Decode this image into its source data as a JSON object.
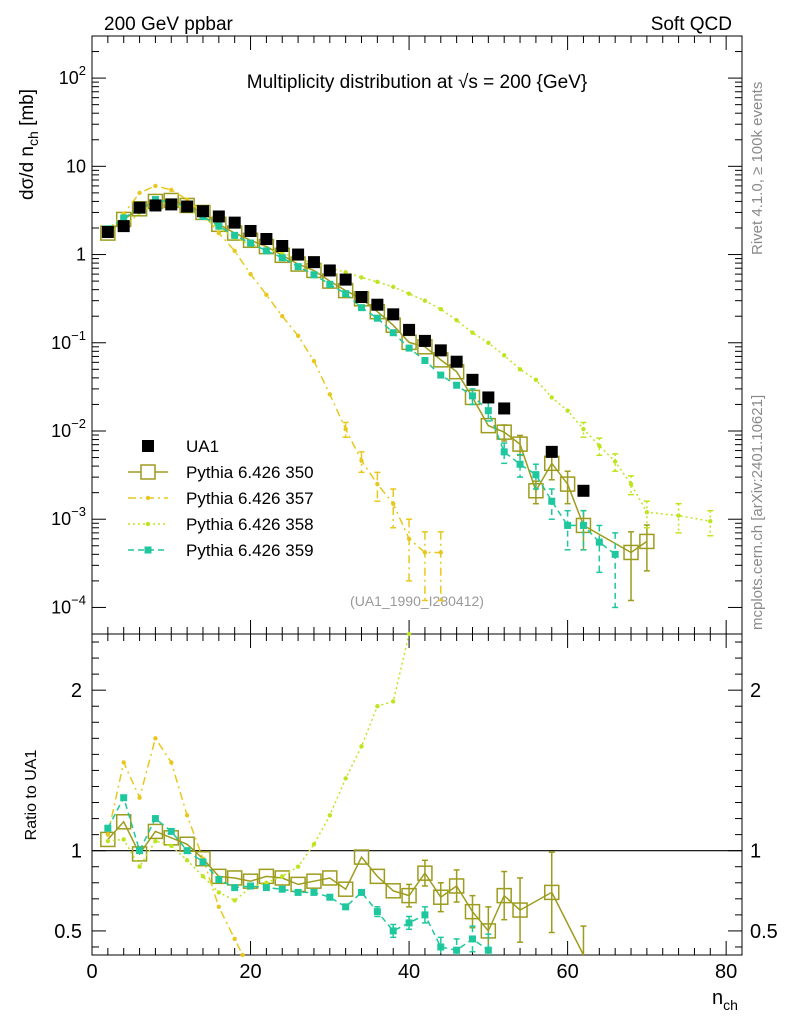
{
  "header": {
    "left_label": "200 GeV ppbar",
    "right_label": "Soft QCD"
  },
  "side_labels": {
    "rivet": "Rivet 4.1.0, ≥ 100k events",
    "site": "mcplots.cern.ch [arXiv:2401.10621]"
  },
  "chart_data": [
    {
      "type": "scatter",
      "panel": "main",
      "title": "Multiplicity distribution at √s = 200 {GeV}",
      "watermark": "(UA1_1990_I280412)",
      "ylabel": "dσ/d n_ch [mb]",
      "xlabel": "n_ch",
      "yscale": "log",
      "xlim": [
        0,
        82
      ],
      "ylim": [
        5e-05,
        300
      ],
      "ytick_labels": [
        "10^-4",
        "10^-3",
        "10^-2",
        "10^-1",
        "1",
        "10",
        "10^2"
      ],
      "xtick_labels": [
        "0",
        "20",
        "40",
        "60",
        "80"
      ],
      "legend_position": "lower-left",
      "series": [
        {
          "name": "UA1",
          "color": "#000000",
          "style": "data",
          "x": [
            2,
            4,
            6,
            8,
            10,
            12,
            14,
            16,
            18,
            20,
            22,
            24,
            26,
            28,
            30,
            32,
            34,
            36,
            38,
            40,
            42,
            44,
            46,
            48,
            50,
            52,
            58,
            62
          ],
          "y": [
            1.8,
            2.1,
            3.4,
            3.6,
            3.7,
            3.5,
            3.1,
            2.7,
            2.3,
            1.85,
            1.5,
            1.25,
            1.0,
            0.82,
            0.66,
            0.52,
            0.33,
            0.27,
            0.21,
            0.14,
            0.105,
            0.082,
            0.061,
            0.038,
            0.024,
            0.018,
            0.0058,
            0.0021
          ]
        },
        {
          "name": "Pythia 6.426 350",
          "color": "#9d9c1e",
          "style": "solid-open-square",
          "x": [
            2,
            4,
            6,
            8,
            10,
            12,
            14,
            16,
            18,
            20,
            22,
            24,
            26,
            28,
            30,
            32,
            34,
            36,
            38,
            40,
            42,
            44,
            46,
            48,
            50,
            52,
            54,
            56,
            58,
            60,
            62,
            68,
            70
          ],
          "y": [
            1.75,
            2.5,
            3.3,
            4.0,
            4.1,
            3.6,
            3.0,
            2.2,
            1.75,
            1.45,
            1.23,
            0.98,
            0.78,
            0.66,
            0.5,
            0.39,
            0.315,
            0.225,
            0.158,
            0.101,
            0.09,
            0.064,
            0.047,
            0.024,
            0.0115,
            0.0097,
            0.0071,
            0.0021,
            0.0043,
            0.0025,
            0.00085,
            0.00042,
            0.00056
          ],
          "yerr": [
            0,
            0,
            0,
            0,
            0,
            0,
            0,
            0,
            0,
            0,
            0,
            0,
            0,
            0,
            0,
            0,
            0,
            0,
            0,
            0,
            0,
            0,
            0,
            0,
            0,
            0.002,
            0.0018,
            0.0006,
            0.0015,
            0.001,
            0.0004,
            0.0003,
            0.0003
          ]
        },
        {
          "name": "Pythia 6.426 357",
          "color": "#e8c81e",
          "style": "dashdot-dot",
          "x": [
            2,
            4,
            6,
            8,
            10,
            12,
            14,
            16,
            18,
            20,
            22,
            24,
            26,
            28,
            30,
            32,
            34,
            36,
            38,
            40,
            42,
            44
          ],
          "y": [
            1.9,
            2.9,
            5.0,
            6.0,
            5.4,
            4.2,
            2.9,
            1.75,
            1.1,
            0.6,
            0.35,
            0.2,
            0.12,
            0.062,
            0.026,
            0.0105,
            0.0046,
            0.0025,
            0.0015,
            0.0006,
            0.00042,
            0.00042
          ],
          "yerr": [
            0,
            0,
            0,
            0,
            0,
            0,
            0,
            0,
            0,
            0,
            0,
            0,
            0,
            0,
            0,
            0.002,
            0.0012,
            0.0009,
            0.0007,
            0.0004,
            0.0003,
            0.0003
          ]
        },
        {
          "name": "Pythia 6.426 358",
          "color": "#bde51e",
          "style": "dotted-dot",
          "x": [
            2,
            4,
            6,
            8,
            10,
            12,
            14,
            16,
            18,
            20,
            22,
            24,
            26,
            28,
            30,
            32,
            34,
            36,
            38,
            40,
            42,
            44,
            46,
            48,
            50,
            52,
            54,
            56,
            58,
            60,
            62,
            64,
            66,
            68,
            70,
            74,
            78
          ],
          "y": [
            1.9,
            2.0,
            3.0,
            3.8,
            3.8,
            3.3,
            2.6,
            2.0,
            1.55,
            1.3,
            1.15,
            1.05,
            0.9,
            0.8,
            0.7,
            0.63,
            0.55,
            0.49,
            0.43,
            0.36,
            0.3,
            0.24,
            0.18,
            0.13,
            0.1,
            0.072,
            0.05,
            0.038,
            0.024,
            0.017,
            0.0105,
            0.0068,
            0.0045,
            0.0025,
            0.0012,
            0.0011,
            0.00095
          ],
          "yerr": [
            0,
            0,
            0,
            0,
            0,
            0,
            0,
            0,
            0,
            0,
            0,
            0,
            0,
            0,
            0,
            0,
            0,
            0,
            0,
            0,
            0,
            0,
            0,
            0,
            0,
            0,
            0,
            0,
            0,
            0,
            0.002,
            0.0015,
            0.001,
            0.0006,
            0.0004,
            0.0004,
            0.0003
          ]
        },
        {
          "name": "Pythia 6.426 359",
          "color": "#1ec79d",
          "style": "dashed-square",
          "x": [
            2,
            4,
            6,
            8,
            10,
            12,
            14,
            16,
            18,
            20,
            22,
            24,
            26,
            28,
            30,
            32,
            34,
            36,
            38,
            40,
            42,
            44,
            46,
            48,
            50,
            52,
            54,
            56,
            58,
            60,
            62,
            64,
            66
          ],
          "y": [
            1.95,
            2.6,
            3.3,
            4.2,
            3.9,
            3.5,
            2.7,
            2.1,
            1.65,
            1.35,
            1.1,
            0.92,
            0.73,
            0.59,
            0.46,
            0.36,
            0.25,
            0.19,
            0.13,
            0.087,
            0.063,
            0.043,
            0.033,
            0.025,
            0.017,
            0.0058,
            0.0042,
            0.0032,
            0.0016,
            0.00085,
            0.00085,
            0.00055,
            0.0004
          ],
          "yerr": [
            0,
            0,
            0,
            0,
            0,
            0,
            0,
            0,
            0,
            0,
            0,
            0,
            0,
            0,
            0,
            0,
            0,
            0,
            0,
            0,
            0,
            0,
            0,
            0.005,
            0.004,
            0.0015,
            0.0012,
            0.001,
            0.0006,
            0.0004,
            0.0004,
            0.0003,
            0.0003
          ]
        }
      ]
    },
    {
      "type": "scatter",
      "panel": "ratio",
      "ylabel": "Ratio to UA1",
      "xlabel": "n_ch",
      "xlim": [
        0,
        82
      ],
      "ylim": [
        0.35,
        2.35
      ],
      "ytick_labels": [
        "0.5",
        "1",
        "2"
      ],
      "xtick_labels": [
        "0",
        "20",
        "40",
        "60",
        "80"
      ],
      "series": [
        {
          "name": "Pythia 6.426 350",
          "color": "#9d9c1e",
          "style": "solid-open-square",
          "x": [
            2,
            4,
            6,
            8,
            10,
            12,
            14,
            16,
            18,
            20,
            22,
            24,
            26,
            28,
            30,
            32,
            34,
            36,
            38,
            40,
            42,
            44,
            46,
            48,
            50,
            52,
            54,
            58,
            62
          ],
          "y": [
            1.07,
            1.18,
            0.98,
            1.12,
            1.08,
            1.04,
            0.95,
            0.84,
            0.83,
            0.81,
            0.84,
            0.83,
            0.79,
            0.81,
            0.83,
            0.76,
            0.96,
            0.84,
            0.75,
            0.72,
            0.86,
            0.71,
            0.78,
            0.62,
            0.5,
            0.72,
            0.63,
            0.74,
            0.33
          ],
          "yerr": [
            0,
            0,
            0,
            0,
            0,
            0,
            0,
            0,
            0,
            0,
            0,
            0,
            0,
            0,
            0,
            0,
            0,
            0,
            0,
            0.07,
            0.08,
            0.09,
            0.1,
            0.1,
            0.15,
            0.15,
            0.2,
            0.25,
            0.2
          ]
        },
        {
          "name": "Pythia 6.426 357",
          "color": "#e8c81e",
          "style": "dashdot-dot",
          "x": [
            2,
            4,
            6,
            8,
            10,
            12,
            14,
            16,
            18,
            19
          ],
          "y": [
            1.1,
            1.55,
            1.33,
            1.7,
            1.55,
            1.22,
            0.95,
            0.65,
            0.45,
            0.35
          ]
        },
        {
          "name": "Pythia 6.426 358",
          "color": "#bde51e",
          "style": "dotted-dot",
          "x": [
            2,
            4,
            6,
            8,
            10,
            12,
            14,
            16,
            18,
            20,
            22,
            24,
            26,
            28,
            30,
            32,
            34,
            36,
            38,
            40
          ],
          "y": [
            1.06,
            1.07,
            0.9,
            1.06,
            1.03,
            0.94,
            0.84,
            0.74,
            0.69,
            0.77,
            0.8,
            0.84,
            0.9,
            1.04,
            1.22,
            1.45,
            1.65,
            1.9,
            1.93,
            2.35
          ]
        },
        {
          "name": "Pythia 6.426 359",
          "color": "#1ec79d",
          "style": "dashed-square",
          "x": [
            2,
            4,
            6,
            8,
            10,
            12,
            14,
            16,
            18,
            20,
            22,
            24,
            26,
            28,
            30,
            32,
            34,
            36,
            38,
            40,
            42,
            44,
            46,
            48,
            50
          ],
          "y": [
            1.14,
            1.33,
            1.0,
            1.2,
            1.12,
            1.0,
            0.93,
            0.82,
            0.77,
            0.78,
            0.77,
            0.76,
            0.74,
            0.74,
            0.71,
            0.65,
            0.74,
            0.62,
            0.5,
            0.55,
            0.6,
            0.4,
            0.38,
            0.45,
            0.38
          ],
          "yerr": [
            0,
            0,
            0,
            0,
            0,
            0,
            0,
            0,
            0,
            0,
            0,
            0,
            0,
            0,
            0,
            0,
            0,
            0.03,
            0.04,
            0.04,
            0.05,
            0.06,
            0.07,
            0.08,
            0.1
          ]
        }
      ]
    }
  ]
}
